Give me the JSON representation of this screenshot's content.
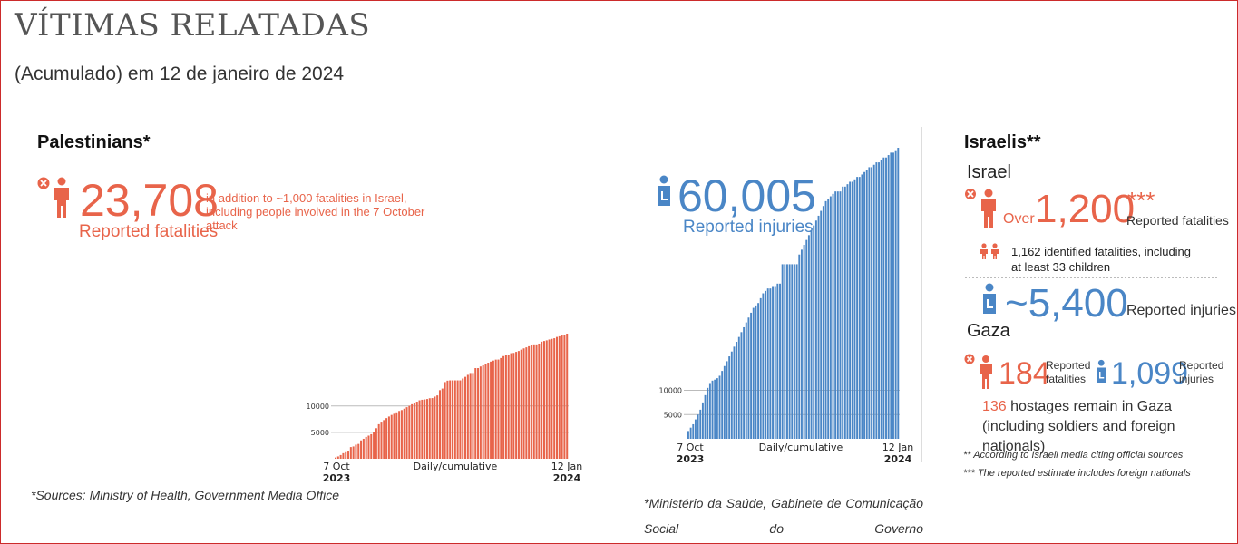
{
  "header": {
    "title": "VÍTIMAS RELATADAS",
    "subtitle": "(Acumulado) em 12 de janeiro de 2024"
  },
  "palestinians": {
    "heading": "Palestinians*",
    "fatalities_value": "23,708",
    "fatalities_label": "Reported fatalities",
    "fatalities_note": "in addition to ~1,000 fatalities in Israel, including people involved in the 7 October attack",
    "injuries_value": "60,005",
    "injuries_label": "Reported injuries",
    "source_left": "*Sources: Ministry of Health, Government Media Office",
    "source_right": "*Ministério da Saúde, Gabinete de Comunicação Social do Governo"
  },
  "israelis": {
    "heading": "Israelis**",
    "israel_label": "Israel",
    "over_label": "Over",
    "fatalities_value": "1,200",
    "fatalities_stars": "***",
    "fatalities_label": "Reported fatalities",
    "identified_note": "1,162 identified fatalities, including at least 33 children",
    "injuries_value": "~5,400",
    "injuries_label": "Reported injuries",
    "gaza_label": "Gaza",
    "gaza_fatalities_value": "184",
    "gaza_fatalities_label": "Reported fatalities",
    "gaza_injuries_value": "1,099",
    "gaza_injuries_label": "Reported injuries",
    "hostages_value": "136",
    "hostages_text": "hostages remain in Gaza (including soldiers and foreign nationals)",
    "footnote1": "** According to Israeli media citing official sources",
    "footnote2": "*** The reported estimate includes foreign nationals"
  },
  "colors": {
    "fatalities": "#e8644a",
    "injuries": "#4a86c6",
    "border": "#cc2b2b"
  },
  "icons": [
    "person-icon",
    "x-circle-icon",
    "injured-person-icon",
    "children-icon"
  ],
  "chart_data": [
    {
      "type": "bar",
      "title": "",
      "xlabel": "Daily/cumulative",
      "x_start": "7 Oct 2023",
      "x_end": "12 Jan 2024",
      "x_start_label": [
        "7 Oct",
        "2023"
      ],
      "x_end_label": [
        "12 Jan",
        "2024"
      ],
      "ylim": [
        0,
        23708
      ],
      "yticks": [
        5000,
        10000
      ],
      "color": "#e8644a",
      "series": [
        {
          "name": "",
          "values": [
            232,
            436,
            704,
            1055,
            1417,
            1537,
            2215,
            2329,
            2670,
            2808,
            3478,
            3785,
            4137,
            4385,
            4651,
            5087,
            5791,
            6546,
            7028,
            7326,
            7703,
            8005,
            8306,
            8525,
            8796,
            9061,
            9227,
            9488,
            9770,
            10022,
            10328,
            10569,
            10818,
            11078,
            11180,
            11240,
            11320,
            11470,
            11500,
            11780,
            12000,
            13000,
            13300,
            14532,
            14800,
            14854,
            14854,
            14854,
            14854,
            14854,
            15207,
            15523,
            15899,
            16248,
            16248,
            17177,
            17177,
            17487,
            17700,
            17997,
            18205,
            18412,
            18608,
            18787,
            18800,
            19088,
            19453,
            19667,
            19667,
            20000,
            20057,
            20258,
            20424,
            20674,
            20915,
            21110,
            21320,
            21507,
            21672,
            21672,
            21822,
            22185,
            22313,
            22438,
            22600,
            22722,
            22835,
            23084,
            23210,
            23357,
            23469,
            23708
          ]
        }
      ]
    },
    {
      "type": "bar",
      "title": "",
      "xlabel": "Daily/cumulative",
      "x_start": "7 Oct 2023",
      "x_end": "12 Jan 2024",
      "x_start_label": [
        "7 Oct",
        "2023"
      ],
      "x_end_label": [
        "12 Jan",
        "2024"
      ],
      "ylim": [
        0,
        60005
      ],
      "yticks": [
        5000,
        10000
      ],
      "color": "#4a86c6",
      "series": [
        {
          "name": "",
          "values": [
            1610,
            2300,
            3000,
            4000,
            5000,
            6000,
            7500,
            9000,
            10500,
            11500,
            12000,
            12200,
            12500,
            13000,
            14000,
            15000,
            16000,
            17000,
            18000,
            19000,
            20000,
            21000,
            22000,
            23000,
            24000,
            25000,
            26000,
            27000,
            27500,
            28000,
            29000,
            30000,
            30500,
            31000,
            31000,
            31500,
            31500,
            32000,
            32000,
            36000,
            36000,
            36000,
            36000,
            36000,
            36000,
            36000,
            38000,
            39000,
            40000,
            41000,
            42000,
            43000,
            44000,
            45000,
            46000,
            47000,
            48000,
            49000,
            49500,
            50000,
            50500,
            51000,
            51000,
            51000,
            52000,
            52000,
            52500,
            53000,
            53000,
            53500,
            54000,
            54000,
            54500,
            55000,
            55500,
            56000,
            56000,
            56500,
            57000,
            57000,
            57500,
            58000,
            58000,
            58500,
            59000,
            59000,
            59500,
            60005
          ]
        }
      ]
    }
  ]
}
